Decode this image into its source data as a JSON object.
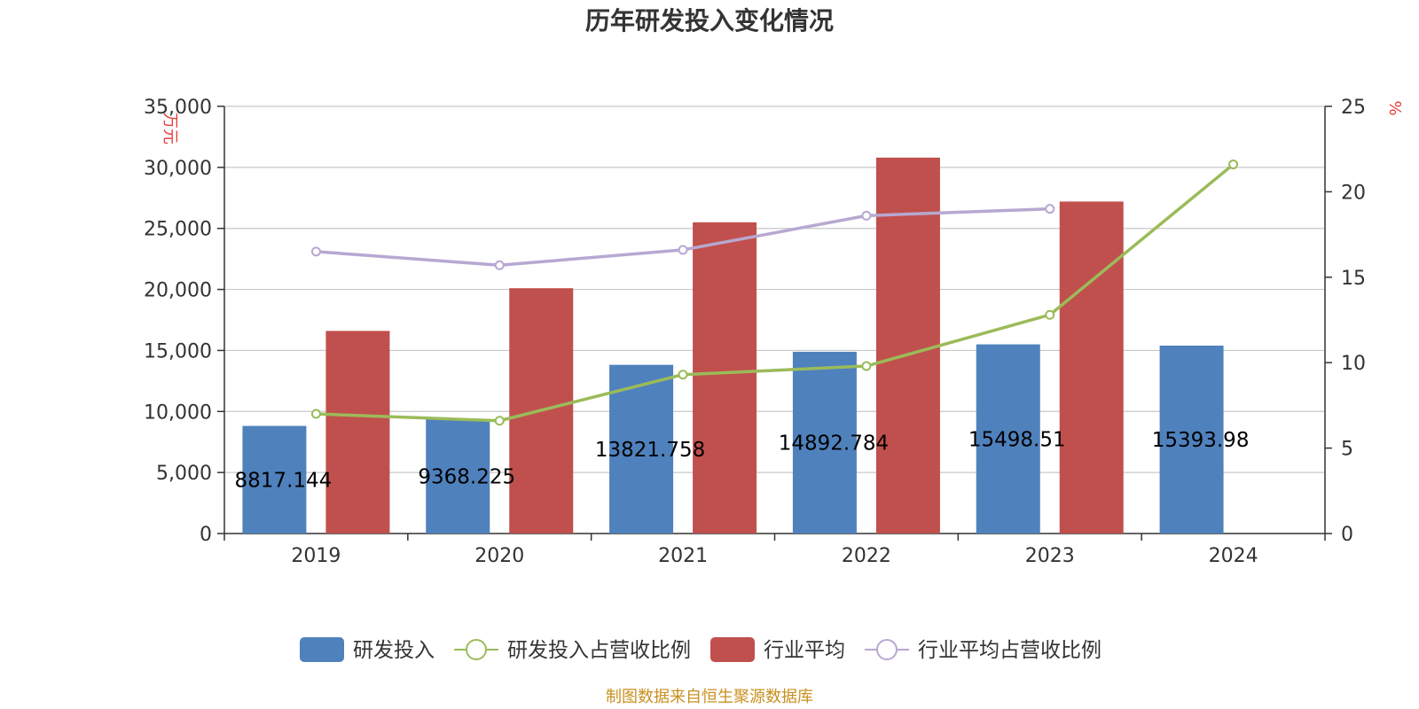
{
  "chart_data": {
    "type": "bar",
    "title": "历年研发投入变化情况",
    "categories": [
      "2019",
      "2020",
      "2021",
      "2022",
      "2023",
      "2024"
    ],
    "left_axis": {
      "unit": "万元",
      "ylim": [
        0,
        35000
      ],
      "ticks": [
        0,
        5000,
        10000,
        15000,
        20000,
        25000,
        30000,
        35000
      ],
      "tick_labels": [
        "0",
        "5,000",
        "10,000",
        "15,000",
        "20,000",
        "25,000",
        "30,000",
        "35,000"
      ]
    },
    "right_axis": {
      "unit": "%",
      "ylim": [
        0,
        25
      ],
      "ticks": [
        0,
        5,
        10,
        15,
        20,
        25
      ],
      "tick_labels": [
        "0",
        "5",
        "10",
        "15",
        "20",
        "25"
      ]
    },
    "grid": true,
    "legend_position": "bottom",
    "series": [
      {
        "name": "研发投入",
        "kind": "bar",
        "axis": "left",
        "color": "#4f81bd",
        "values": [
          8817.144,
          9368.225,
          13821.758,
          14892.784,
          15498.51,
          15393.98
        ],
        "labels": [
          "8817.144",
          "9368.225",
          "13821.758",
          "14892.784",
          "15498.51",
          "15393.98"
        ]
      },
      {
        "name": "研发投入占营收比例",
        "kind": "line",
        "axis": "right",
        "color": "#9bbb59",
        "values": [
          7.0,
          6.6,
          9.3,
          9.8,
          12.8,
          21.6
        ]
      },
      {
        "name": "行业平均",
        "kind": "bar",
        "axis": "left",
        "color": "#c0504d",
        "values": [
          16600,
          20100,
          25500,
          30800,
          27200,
          null
        ]
      },
      {
        "name": "行业平均占营收比例",
        "kind": "line",
        "axis": "right",
        "color": "#b7a8d1",
        "values": [
          16.5,
          15.7,
          16.6,
          18.6,
          19.0,
          null
        ]
      }
    ],
    "source": "制图数据来自恒生聚源数据库"
  }
}
